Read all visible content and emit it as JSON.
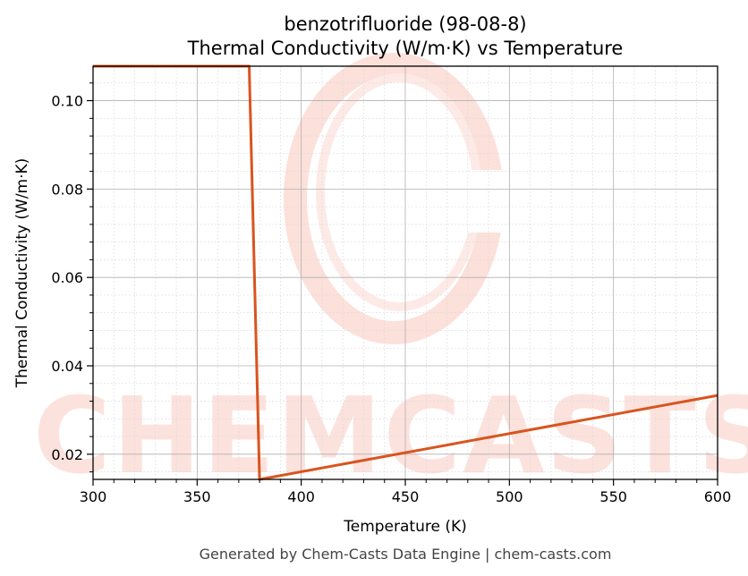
{
  "chart_data": {
    "type": "line",
    "title": "benzotrifluoride (98-08-8)",
    "subtitle": "Thermal Conductivity (W/m·K) vs Temperature",
    "xlabel": "Temperature (K)",
    "ylabel": "Thermal Conductivity (W/m·K)",
    "xlim": [
      300,
      600
    ],
    "ylim": [
      0.0143,
      0.1078
    ],
    "x_ticks": [
      300,
      350,
      400,
      450,
      500,
      550,
      600
    ],
    "y_ticks": [
      0.02,
      0.04,
      0.06,
      0.08,
      0.1
    ],
    "x_tick_labels": [
      "300",
      "350",
      "400",
      "450",
      "500",
      "550",
      "600"
    ],
    "y_tick_labels": [
      "0.02",
      "0.04",
      "0.06",
      "0.08",
      "0.10"
    ],
    "grid": true,
    "series": [
      {
        "color": "#d9541e",
        "x": [
          300,
          375,
          380,
          600
        ],
        "y": [
          0.1078,
          0.1078,
          0.0143,
          0.0333
        ]
      }
    ]
  },
  "watermark": {
    "text": "CHEMCASTS"
  },
  "footer": {
    "text": "Generated by Chem-Casts Data Engine | chem-casts.com"
  }
}
